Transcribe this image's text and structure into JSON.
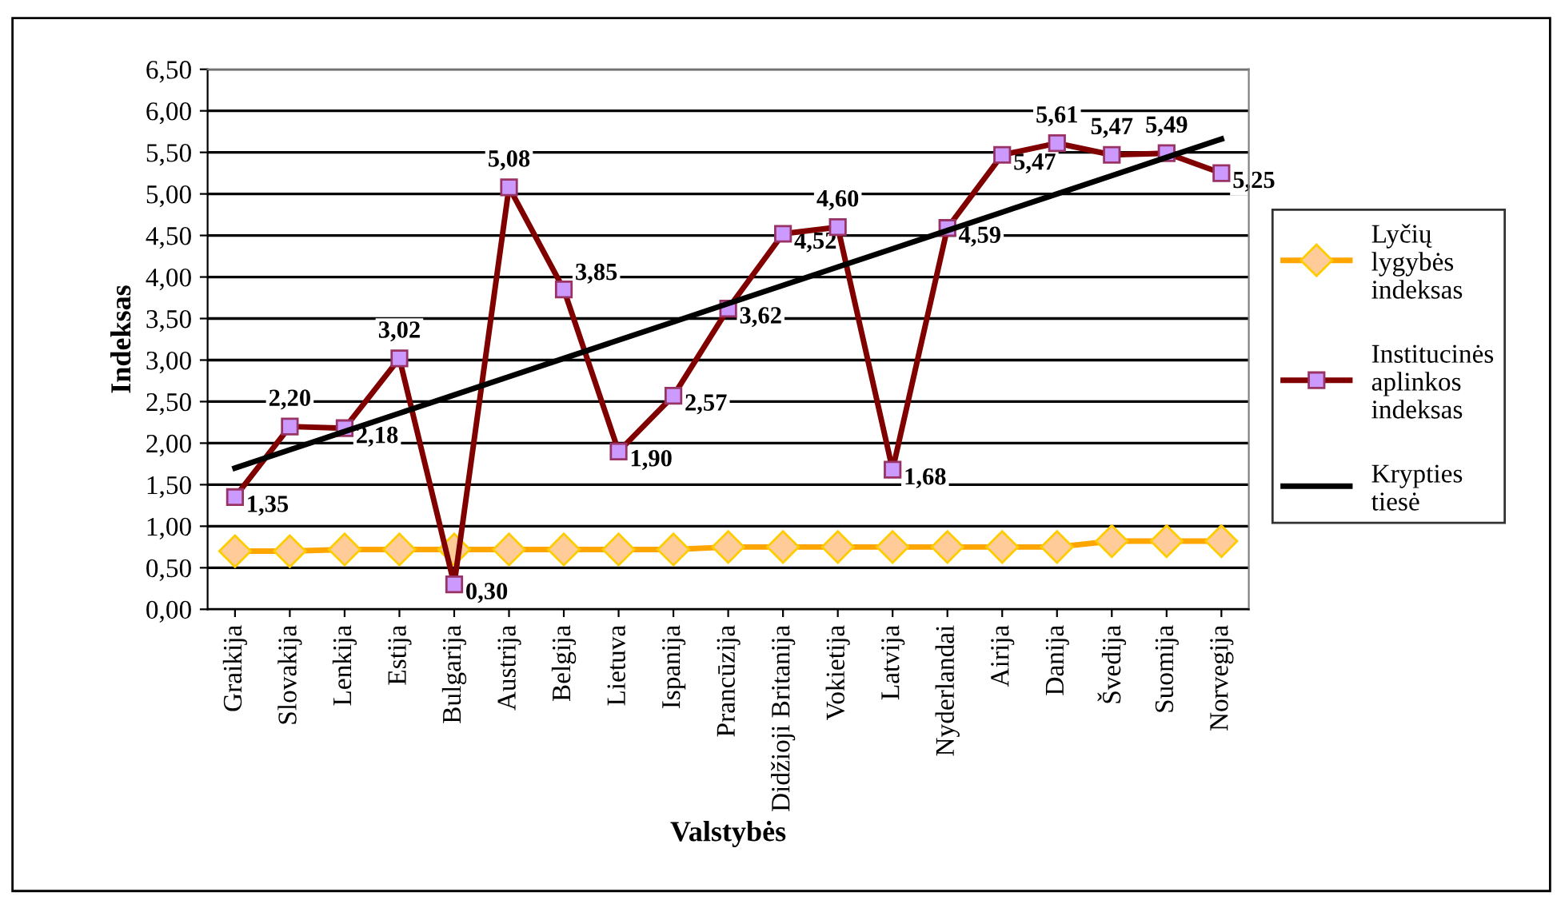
{
  "chart_data": {
    "type": "line",
    "xlabel": "Valstybės",
    "ylabel": "Indeksas",
    "categories": [
      "Graikija",
      "Slovakija",
      "Lenkija",
      "Estija",
      "Bulgarija",
      "Austrija",
      "Belgija",
      "Lietuva",
      "Ispanija",
      "Prancūzija",
      "Didžioji Britanija",
      "Vokietija",
      "Latvija",
      "Nyderlandai",
      "Airija",
      "Danija",
      "Švedija",
      "Suomija",
      "Norvegija"
    ],
    "series": [
      {
        "name": "Lyčių lygybės indeksas",
        "color": "#ffa500",
        "marker": "diamond",
        "values": [
          0.7,
          0.7,
          0.72,
          0.72,
          0.72,
          0.72,
          0.72,
          0.72,
          0.72,
          0.75,
          0.75,
          0.75,
          0.75,
          0.75,
          0.75,
          0.75,
          0.82,
          0.82,
          0.82
        ]
      },
      {
        "name": "Institucinės aplinkos indeksas",
        "color": "#800000",
        "marker": "square",
        "value_labels": [
          "1,35",
          "2,20",
          "2,18",
          "3,02",
          "0,30",
          "5,08",
          "3,85",
          "1,90",
          "2,57",
          "3,62",
          "4,52",
          "4,60",
          "1,68",
          "4,59",
          "5,47",
          "5,61",
          "5,47",
          "5,49",
          "5,25"
        ],
        "values": [
          1.35,
          2.2,
          2.18,
          3.02,
          0.3,
          5.08,
          3.85,
          1.9,
          2.57,
          3.62,
          4.52,
          4.6,
          1.68,
          4.59,
          5.47,
          5.61,
          5.47,
          5.49,
          5.25
        ]
      },
      {
        "name": "Krypties tiesė",
        "color": "#000000",
        "marker": "none",
        "values": [
          1.7,
          1.92,
          2.14,
          2.36,
          2.58,
          2.8,
          3.02,
          3.24,
          3.46,
          3.68,
          3.9,
          4.12,
          4.34,
          4.56,
          4.78,
          5.0,
          5.22,
          5.44,
          5.66
        ]
      }
    ],
    "ylim": [
      0,
      6.5
    ],
    "yticks": [
      {
        "value": 0,
        "label": "0,00"
      },
      {
        "value": 0.5,
        "label": "0,50"
      },
      {
        "value": 1,
        "label": "1,00"
      },
      {
        "value": 1.5,
        "label": "1,50"
      },
      {
        "value": 2,
        "label": "2,00"
      },
      {
        "value": 2.5,
        "label": "2,50"
      },
      {
        "value": 3,
        "label": "3,00"
      },
      {
        "value": 3.5,
        "label": "3,50"
      },
      {
        "value": 4,
        "label": "4,00"
      },
      {
        "value": 4.5,
        "label": "4,50"
      },
      {
        "value": 5,
        "label": "5,00"
      },
      {
        "value": 5.5,
        "label": "5,50"
      },
      {
        "value": 6,
        "label": "6,00"
      },
      {
        "value": 6.5,
        "label": "6,50"
      }
    ],
    "grid": "y",
    "legend": "right"
  }
}
